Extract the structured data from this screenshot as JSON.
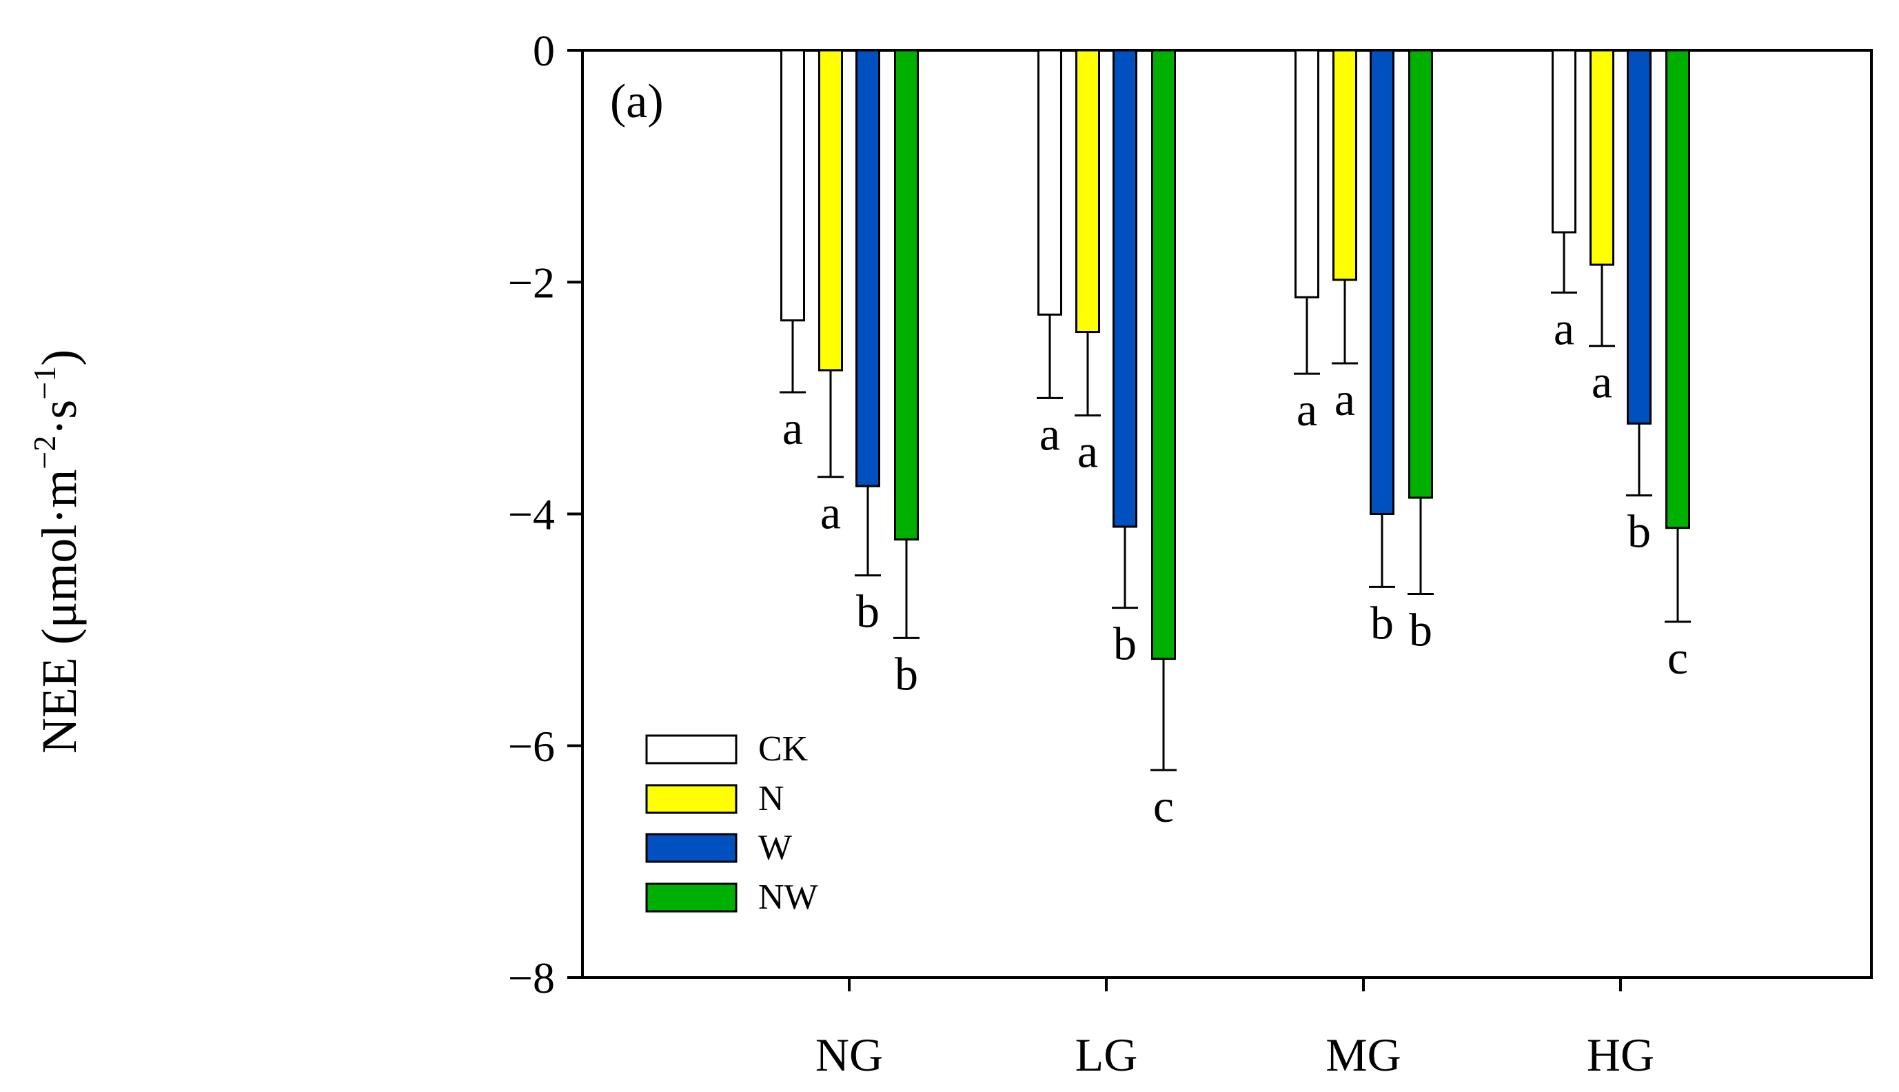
{
  "chart_data": {
    "type": "bar",
    "panel_label": "(a)",
    "ylabel": "NEE (μmol·m⁻²·s⁻¹)",
    "ylabel_parts": {
      "prefix": "NEE (μmol·m",
      "sup1": "−2",
      "mid": "·s",
      "sup2": "−1",
      "suffix": ")"
    },
    "xlabel": "",
    "ylim": [
      -8,
      0
    ],
    "y_ticks": [
      0,
      -2,
      -4,
      -6,
      -8
    ],
    "y_tick_labels": [
      "0",
      "−2",
      "−4",
      "−6",
      "−8"
    ],
    "categories": [
      "NG",
      "LG",
      "MG",
      "HG"
    ],
    "legend_position": "bottom-left",
    "series": [
      {
        "name": "CK",
        "color": "#ffffff",
        "values": [
          -2.33,
          -2.28,
          -2.13,
          -1.57
        ],
        "errors": [
          0.62,
          0.72,
          0.66,
          0.52
        ],
        "labels": [
          "a",
          "a",
          "a",
          "a"
        ]
      },
      {
        "name": "N",
        "color": "#ffff00",
        "values": [
          -2.76,
          -2.43,
          -1.98,
          -1.85
        ],
        "errors": [
          0.92,
          0.72,
          0.72,
          0.7
        ],
        "labels": [
          "a",
          "a",
          "a",
          "a"
        ]
      },
      {
        "name": "W",
        "color": "#0050c0",
        "values": [
          -3.76,
          -4.11,
          -4.0,
          -3.22
        ],
        "errors": [
          0.77,
          0.7,
          0.63,
          0.62
        ],
        "labels": [
          "b",
          "b",
          "b",
          "b"
        ]
      },
      {
        "name": "NW",
        "color": "#00b000",
        "values": [
          -4.22,
          -5.25,
          -3.86,
          -4.12
        ],
        "errors": [
          0.85,
          0.96,
          0.83,
          0.81
        ],
        "labels": [
          "b",
          "c",
          "b",
          "c"
        ]
      }
    ]
  }
}
